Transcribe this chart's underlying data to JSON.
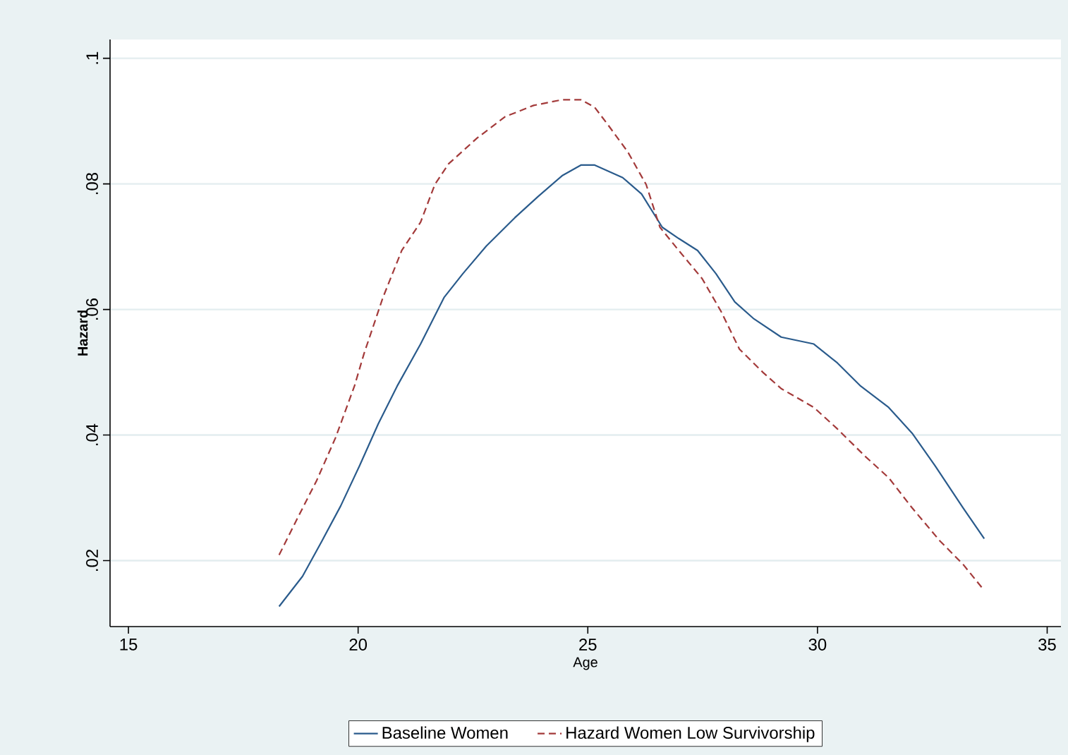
{
  "chart_data": {
    "type": "line",
    "xlabel": "Age",
    "ylabel": "Hazard",
    "xlim": [
      14.6,
      35.3
    ],
    "ylim": [
      0.0095,
      0.103
    ],
    "xticks": [
      15,
      20,
      25,
      30,
      35
    ],
    "yticks": [
      {
        "value": 0.02,
        "label": ".02"
      },
      {
        "value": 0.04,
        "label": ".04"
      },
      {
        "value": 0.06,
        "label": ".06"
      },
      {
        "value": 0.08,
        "label": ".08"
      },
      {
        "value": 0.1,
        "label": ".1"
      }
    ],
    "grid": "y",
    "legend": "bottom",
    "series": [
      {
        "name": "Baseline Women",
        "color": "#2a5b8c",
        "line_style": "solid",
        "x": [
          18.28,
          18.79,
          19.21,
          19.62,
          20.03,
          20.44,
          20.85,
          21.36,
          21.87,
          22.28,
          22.79,
          23.41,
          23.92,
          24.44,
          24.85,
          25.15,
          25.76,
          26.17,
          26.62,
          26.98,
          27.39,
          27.79,
          28.2,
          28.6,
          29.21,
          29.92,
          30.43,
          30.94,
          31.55,
          32.06,
          32.56,
          33.17,
          33.63
        ],
        "values": [
          0.0127,
          0.0175,
          0.0231,
          0.0287,
          0.0351,
          0.0418,
          0.0478,
          0.0545,
          0.0619,
          0.0657,
          0.0701,
          0.0746,
          0.078,
          0.0813,
          0.083,
          0.083,
          0.081,
          0.0784,
          0.0731,
          0.0713,
          0.0694,
          0.0657,
          0.0612,
          0.0586,
          0.0556,
          0.0545,
          0.0515,
          0.0478,
          0.0444,
          0.0403,
          0.0351,
          0.0284,
          0.0235
        ]
      },
      {
        "name": "Hazard Women Low Survivorship",
        "color": "#a33a3a",
        "line_style": "dashed",
        "x": [
          18.28,
          18.69,
          19.1,
          19.51,
          19.92,
          20.13,
          20.54,
          20.95,
          21.36,
          21.67,
          21.97,
          22.59,
          23.2,
          23.82,
          24.44,
          24.85,
          25.15,
          25.46,
          25.87,
          26.27,
          26.57,
          26.98,
          27.49,
          27.9,
          28.3,
          28.81,
          29.21,
          29.92,
          30.43,
          31.04,
          31.55,
          32.06,
          32.67,
          33.17,
          33.58
        ],
        "values": [
          0.0209,
          0.0269,
          0.0328,
          0.0396,
          0.0478,
          0.053,
          0.0619,
          0.0694,
          0.0739,
          0.0799,
          0.0832,
          0.0873,
          0.0907,
          0.0925,
          0.0934,
          0.0934,
          0.0922,
          0.0892,
          0.0851,
          0.0799,
          0.0731,
          0.0694,
          0.0649,
          0.0597,
          0.0537,
          0.05,
          0.0474,
          0.0444,
          0.041,
          0.0366,
          0.0332,
          0.0284,
          0.0231,
          0.0194,
          0.0157
        ]
      }
    ]
  }
}
